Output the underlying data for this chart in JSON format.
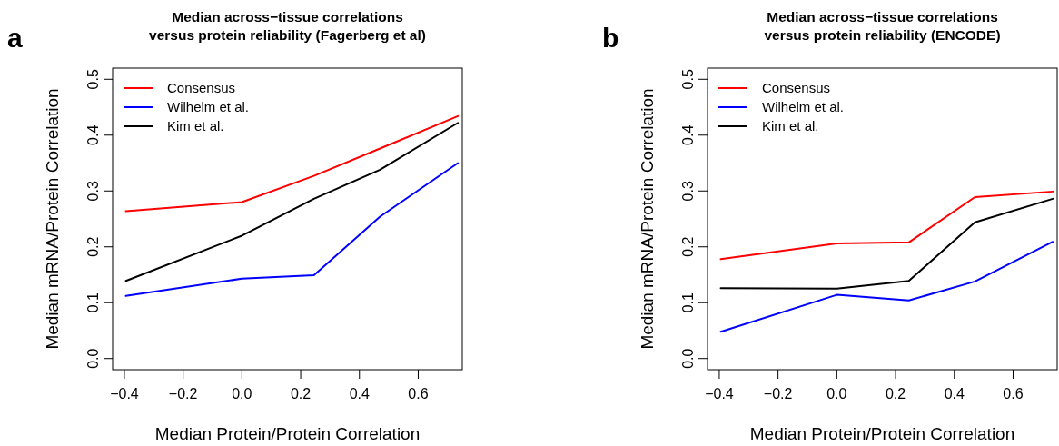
{
  "chart_data": [
    {
      "type": "line",
      "title": "Median across−tissue correlations\nversus protein reliability  (Fagerberg et al)",
      "xlabel": "Median Protein/Protein Correlation",
      "ylabel": "Median mRNA/Protein Correlation",
      "annotations": [
        "a"
      ],
      "x": [
        -0.395,
        0.0,
        0.245,
        0.47,
        0.735
      ],
      "xlim": [
        -0.44,
        0.75
      ],
      "ylim": [
        -0.02,
        0.52
      ],
      "xticks": [
        {
          "value": -0.4,
          "label": "−0.4"
        },
        {
          "value": -0.2,
          "label": "−0.2"
        },
        {
          "value": 0,
          "label": "0.0"
        },
        {
          "value": 0.2,
          "label": "0.2"
        },
        {
          "value": 0.4,
          "label": "0.4"
        },
        {
          "value": 0.6,
          "label": "0.6"
        }
      ],
      "yticks": [
        {
          "value": 0,
          "label": "0.0"
        },
        0.1,
        0.2,
        0.3,
        0.4,
        0.5
      ],
      "legend": "top left",
      "grid": false,
      "series": [
        {
          "name": "Consensus",
          "color": "#ff0000",
          "values": [
            0.264,
            0.28,
            0.327,
            0.376,
            0.434
          ]
        },
        {
          "name": "Wilhelm et al.",
          "color": "#0000ff",
          "values": [
            0.112,
            0.143,
            0.149,
            0.254,
            0.35
          ]
        },
        {
          "name": "Kim et al.",
          "color": "#000000",
          "values": [
            0.139,
            0.22,
            0.286,
            0.338,
            0.422
          ]
        }
      ]
    },
    {
      "type": "line",
      "title": "Median across−tissue correlations\nversus protein reliability  (ENCODE)",
      "xlabel": "Median Protein/Protein Correlation",
      "ylabel": "Median mRNA/Protein Correlation",
      "annotations": [
        "b"
      ],
      "x": [
        -0.395,
        0.0,
        0.245,
        0.47,
        0.735
      ],
      "xlim": [
        -0.44,
        0.75
      ],
      "ylim": [
        -0.02,
        0.52
      ],
      "xticks": [
        {
          "value": -0.4,
          "label": "−0.4"
        },
        {
          "value": -0.2,
          "label": "−0.2"
        },
        {
          "value": 0,
          "label": "0.0"
        },
        {
          "value": 0.2,
          "label": "0.2"
        },
        {
          "value": 0.4,
          "label": "0.4"
        },
        {
          "value": 0.6,
          "label": "0.6"
        }
      ],
      "yticks": [
        {
          "value": 0,
          "label": "0.0"
        },
        0.1,
        0.2,
        0.3,
        0.4,
        0.5
      ],
      "legend": "top left",
      "grid": false,
      "series": [
        {
          "name": "Consensus",
          "color": "#ff0000",
          "values": [
            0.178,
            0.206,
            0.208,
            0.289,
            0.299
          ]
        },
        {
          "name": "Wilhelm et al.",
          "color": "#0000ff",
          "values": [
            0.048,
            0.114,
            0.104,
            0.138,
            0.209
          ]
        },
        {
          "name": "Kim et al.",
          "color": "#000000",
          "values": [
            0.126,
            0.125,
            0.139,
            0.244,
            0.286
          ]
        }
      ]
    }
  ]
}
